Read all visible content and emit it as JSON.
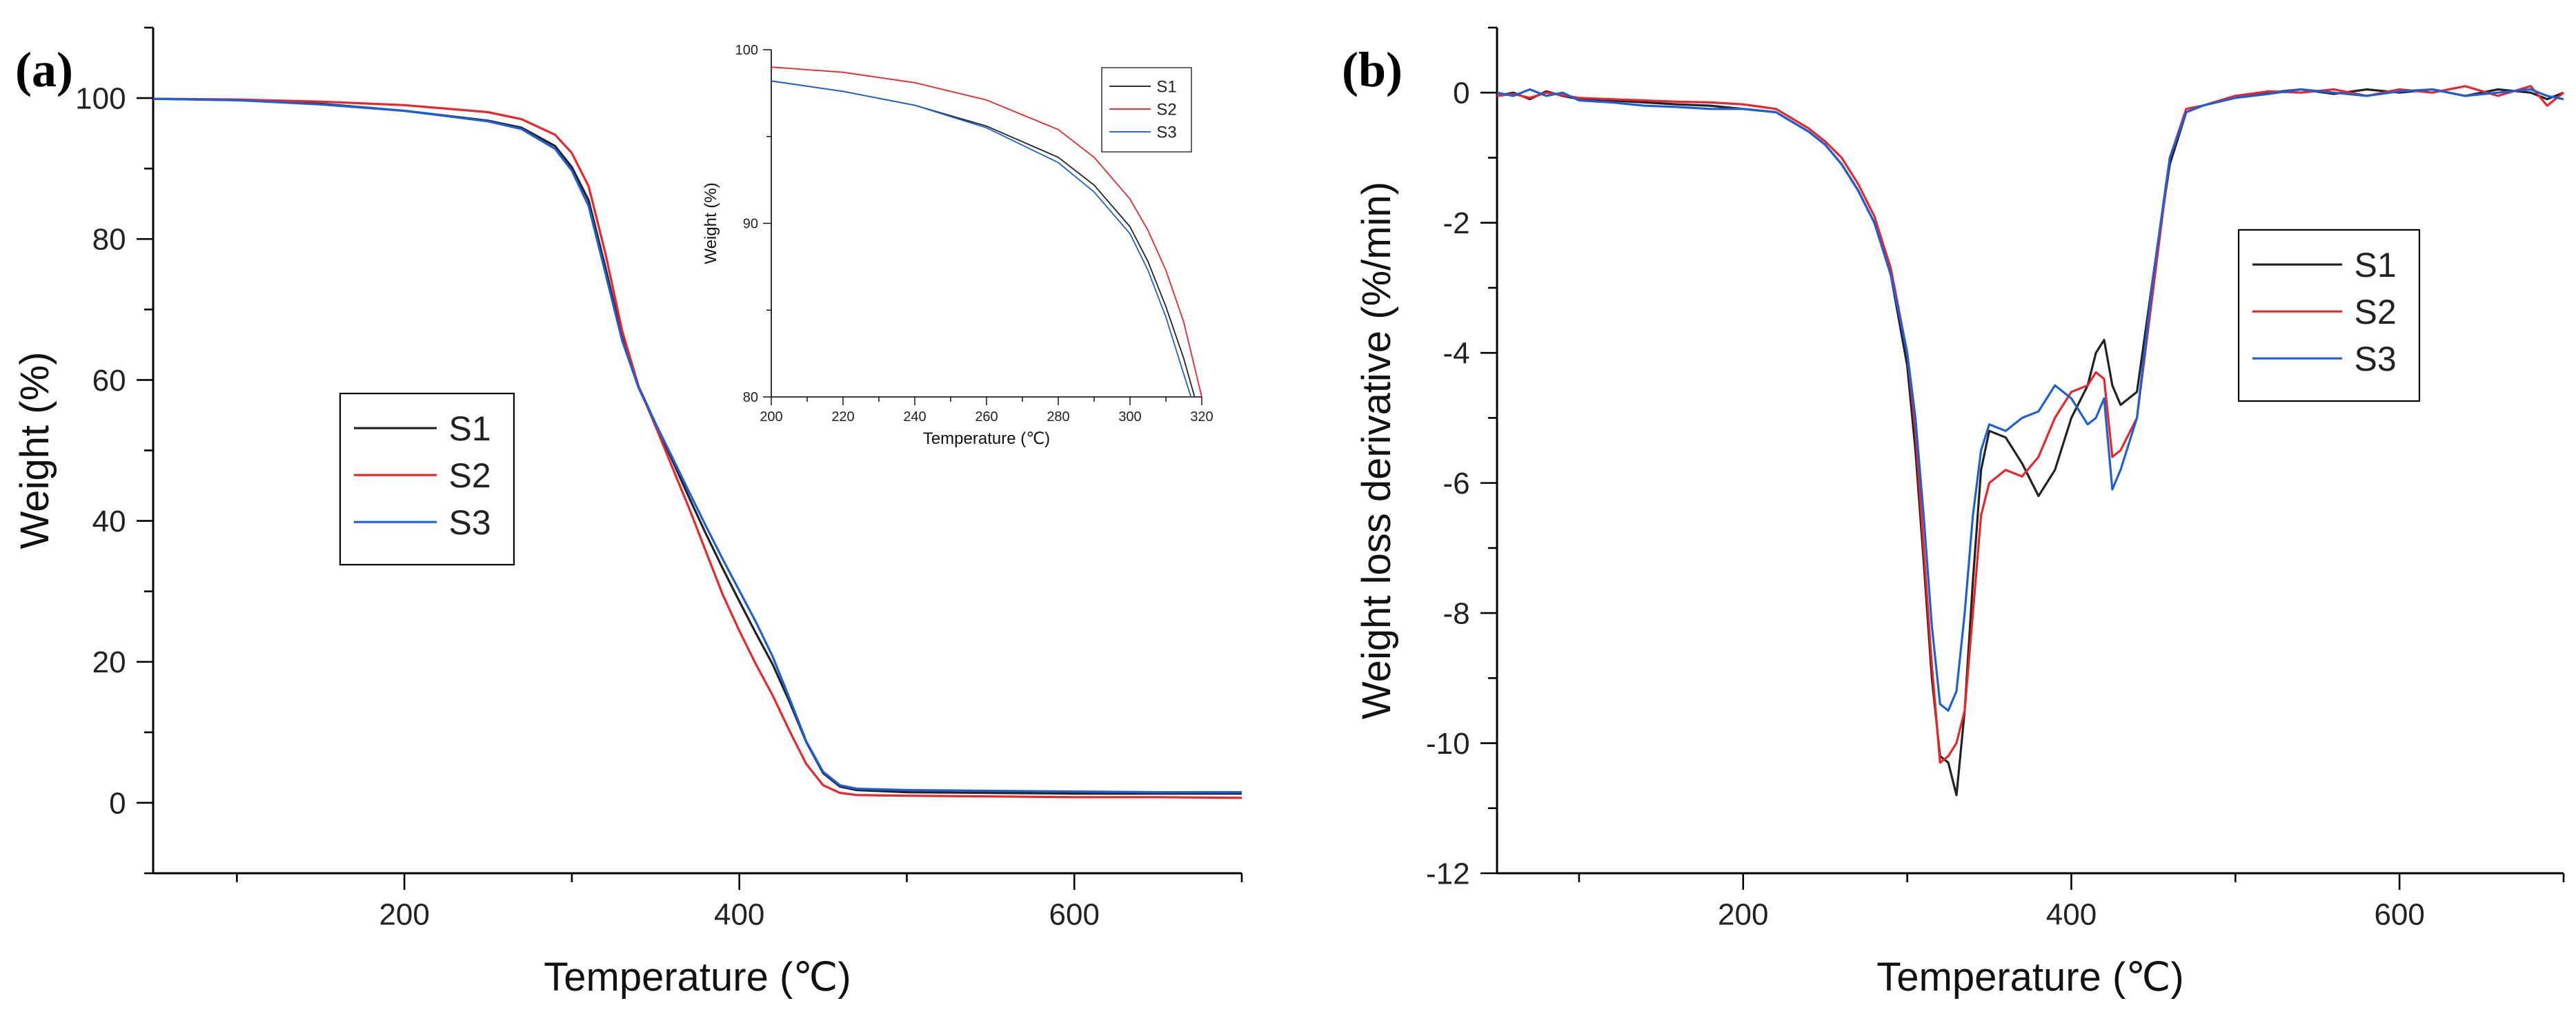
{
  "colors": {
    "S1": "#222222",
    "S2": "#e8262b",
    "S3": "#1f5fd6"
  },
  "chart_data": [
    {
      "id": "a",
      "panel_label": "(a)",
      "type": "line",
      "xlabel": "Temperature (℃)",
      "ylabel": "Weight (%)",
      "xlim": [
        50,
        700
      ],
      "ylim": [
        -10,
        110
      ],
      "xticks": [
        200,
        400,
        600
      ],
      "yticks": [
        0,
        20,
        40,
        60,
        80,
        100
      ],
      "legend": {
        "position": "center-left",
        "entries": [
          "S1",
          "S2",
          "S3"
        ]
      },
      "series": [
        {
          "name": "S1",
          "x": [
            50,
            100,
            150,
            200,
            250,
            270,
            290,
            300,
            310,
            320,
            330,
            340,
            350,
            360,
            370,
            380,
            390,
            400,
            410,
            420,
            430,
            440,
            450,
            460,
            470,
            500,
            550,
            600,
            650,
            700
          ],
          "y": [
            99.9,
            99.7,
            99.2,
            98.2,
            96.8,
            95.8,
            93.2,
            90.2,
            85.5,
            76.0,
            66.0,
            59.0,
            53.8,
            48.6,
            43.3,
            38.2,
            33.3,
            28.6,
            24.0,
            19.6,
            14.3,
            8.6,
            4.2,
            2.3,
            1.8,
            1.5,
            1.4,
            1.3,
            1.3,
            1.3
          ]
        },
        {
          "name": "S2",
          "x": [
            50,
            100,
            150,
            200,
            250,
            270,
            290,
            300,
            310,
            320,
            330,
            340,
            350,
            360,
            370,
            380,
            390,
            400,
            410,
            420,
            430,
            440,
            450,
            460,
            470,
            500,
            550,
            600,
            650,
            700
          ],
          "y": [
            99.9,
            99.8,
            99.5,
            99.0,
            98.0,
            97.0,
            94.8,
            92.2,
            87.5,
            78.0,
            67.0,
            59.0,
            53.4,
            47.6,
            41.8,
            35.7,
            29.6,
            24.4,
            19.6,
            15.2,
            10.2,
            5.5,
            2.5,
            1.4,
            1.1,
            1.0,
            0.9,
            0.8,
            0.8,
            0.7
          ]
        },
        {
          "name": "S3",
          "x": [
            50,
            100,
            150,
            200,
            250,
            270,
            290,
            300,
            310,
            320,
            330,
            340,
            350,
            360,
            370,
            380,
            390,
            400,
            410,
            420,
            430,
            440,
            450,
            460,
            470,
            500,
            550,
            600,
            650,
            700
          ],
          "y": [
            99.9,
            99.7,
            99.1,
            98.2,
            96.7,
            95.6,
            92.8,
            89.7,
            84.7,
            75.2,
            65.6,
            58.8,
            53.8,
            49.0,
            44.1,
            39.3,
            34.6,
            30.1,
            25.6,
            20.7,
            14.8,
            8.7,
            4.4,
            2.5,
            2.0,
            1.8,
            1.7,
            1.6,
            1.5,
            1.5
          ]
        }
      ],
      "inset": {
        "type": "line",
        "xlabel": "Temperature (℃)",
        "ylabel": "Weight (%)",
        "xlim": [
          200,
          320
        ],
        "ylim": [
          80,
          100
        ],
        "xticks": [
          200,
          220,
          240,
          260,
          280,
          300,
          320
        ],
        "yticks": [
          80,
          90,
          100
        ],
        "legend": {
          "position": "top-right",
          "entries": [
            "S1",
            "S2",
            "S3"
          ]
        },
        "series": [
          {
            "name": "S1",
            "x": [
              200,
              220,
              240,
              260,
              280,
              290,
              300,
              305,
              310,
              315,
              318
            ],
            "y": [
              98.2,
              97.6,
              96.8,
              95.6,
              93.8,
              92.2,
              89.8,
              87.8,
              85.2,
              82.2,
              80.0
            ]
          },
          {
            "name": "S2",
            "x": [
              200,
              220,
              240,
              260,
              280,
              290,
              300,
              305,
              310,
              315,
              320
            ],
            "y": [
              99.0,
              98.7,
              98.1,
              97.1,
              95.4,
              93.8,
              91.4,
              89.6,
              87.3,
              84.3,
              80.0
            ]
          },
          {
            "name": "S3",
            "x": [
              200,
              220,
              240,
              260,
              280,
              290,
              300,
              305,
              310,
              315,
              317
            ],
            "y": [
              98.2,
              97.6,
              96.8,
              95.5,
              93.5,
              91.8,
              89.4,
              87.3,
              84.6,
              81.3,
              80.0
            ]
          }
        ]
      }
    },
    {
      "id": "b",
      "panel_label": "(b)",
      "type": "line",
      "xlabel": "Temperature (℃)",
      "ylabel": "Weight loss derivative (%/min)",
      "xlim": [
        50,
        700
      ],
      "ylim": [
        -12,
        1
      ],
      "xticks": [
        200,
        400,
        600
      ],
      "yticks": [
        -12,
        -10,
        -8,
        -6,
        -4,
        -2,
        0
      ],
      "legend": {
        "position": "center-right",
        "entries": [
          "S1",
          "S2",
          "S3"
        ]
      },
      "series": [
        {
          "name": "S1",
          "x": [
            50,
            60,
            70,
            80,
            90,
            100,
            120,
            140,
            160,
            180,
            200,
            220,
            230,
            240,
            250,
            260,
            270,
            280,
            290,
            300,
            305,
            310,
            315,
            320,
            325,
            330,
            335,
            340,
            345,
            350,
            360,
            370,
            380,
            390,
            400,
            410,
            415,
            420,
            425,
            430,
            440,
            450,
            460,
            470,
            480,
            500,
            520,
            540,
            560,
            580,
            600,
            620,
            640,
            660,
            680,
            690,
            700
          ],
          "y": [
            -0.05,
            0.0,
            -0.1,
            0.02,
            -0.05,
            -0.1,
            -0.12,
            -0.15,
            -0.18,
            -0.2,
            -0.25,
            -0.3,
            -0.45,
            -0.6,
            -0.8,
            -1.1,
            -1.5,
            -2.0,
            -2.8,
            -4.2,
            -5.5,
            -7.2,
            -9.0,
            -10.2,
            -10.3,
            -10.8,
            -9.5,
            -7.5,
            -5.8,
            -5.2,
            -5.3,
            -5.7,
            -6.2,
            -5.8,
            -5.0,
            -4.5,
            -4.0,
            -3.8,
            -4.5,
            -4.8,
            -4.6,
            -2.8,
            -1.1,
            -0.3,
            -0.2,
            -0.05,
            0.0,
            0.05,
            -0.02,
            0.05,
            0.0,
            0.05,
            -0.05,
            0.05,
            0.0,
            -0.1,
            0.0
          ]
        },
        {
          "name": "S2",
          "x": [
            50,
            60,
            70,
            80,
            90,
            100,
            120,
            140,
            160,
            180,
            200,
            220,
            230,
            240,
            250,
            260,
            270,
            280,
            290,
            300,
            305,
            310,
            315,
            320,
            325,
            330,
            335,
            340,
            345,
            350,
            360,
            370,
            380,
            390,
            400,
            410,
            415,
            420,
            425,
            430,
            440,
            450,
            460,
            470,
            480,
            500,
            520,
            540,
            560,
            580,
            600,
            620,
            640,
            660,
            680,
            690,
            700
          ],
          "y": [
            -0.05,
            -0.02,
            -0.08,
            0.0,
            -0.04,
            -0.08,
            -0.1,
            -0.12,
            -0.14,
            -0.15,
            -0.18,
            -0.25,
            -0.4,
            -0.55,
            -0.75,
            -1.0,
            -1.4,
            -1.9,
            -2.7,
            -4.0,
            -5.2,
            -7.0,
            -8.8,
            -10.3,
            -10.2,
            -10.0,
            -9.5,
            -8.0,
            -6.5,
            -6.0,
            -5.8,
            -5.9,
            -5.6,
            -5.0,
            -4.6,
            -4.5,
            -4.3,
            -4.4,
            -5.6,
            -5.5,
            -5.0,
            -3.0,
            -1.0,
            -0.25,
            -0.2,
            -0.05,
            0.02,
            0.0,
            0.05,
            -0.05,
            0.05,
            0.0,
            0.1,
            -0.05,
            0.1,
            -0.2,
            0.0
          ]
        },
        {
          "name": "S3",
          "x": [
            50,
            60,
            70,
            80,
            90,
            100,
            120,
            140,
            160,
            180,
            200,
            220,
            230,
            240,
            250,
            260,
            270,
            280,
            290,
            300,
            305,
            310,
            315,
            320,
            325,
            330,
            335,
            340,
            345,
            350,
            360,
            370,
            380,
            390,
            400,
            410,
            415,
            420,
            425,
            430,
            440,
            450,
            460,
            470,
            480,
            500,
            520,
            540,
            560,
            580,
            600,
            620,
            640,
            660,
            680,
            690,
            700
          ],
          "y": [
            0.0,
            -0.05,
            0.05,
            -0.05,
            0.0,
            -0.12,
            -0.15,
            -0.2,
            -0.22,
            -0.25,
            -0.25,
            -0.3,
            -0.45,
            -0.6,
            -0.8,
            -1.1,
            -1.5,
            -2.0,
            -2.8,
            -4.0,
            -5.0,
            -6.5,
            -8.2,
            -9.4,
            -9.5,
            -9.2,
            -8.0,
            -6.5,
            -5.5,
            -5.1,
            -5.2,
            -5.0,
            -4.9,
            -4.5,
            -4.7,
            -5.1,
            -5.0,
            -4.7,
            -6.1,
            -5.8,
            -5.0,
            -2.8,
            -1.0,
            -0.3,
            -0.2,
            -0.08,
            -0.02,
            0.05,
            0.0,
            -0.05,
            0.02,
            0.05,
            -0.05,
            0.0,
            0.05,
            -0.05,
            -0.1
          ]
        }
      ]
    }
  ]
}
